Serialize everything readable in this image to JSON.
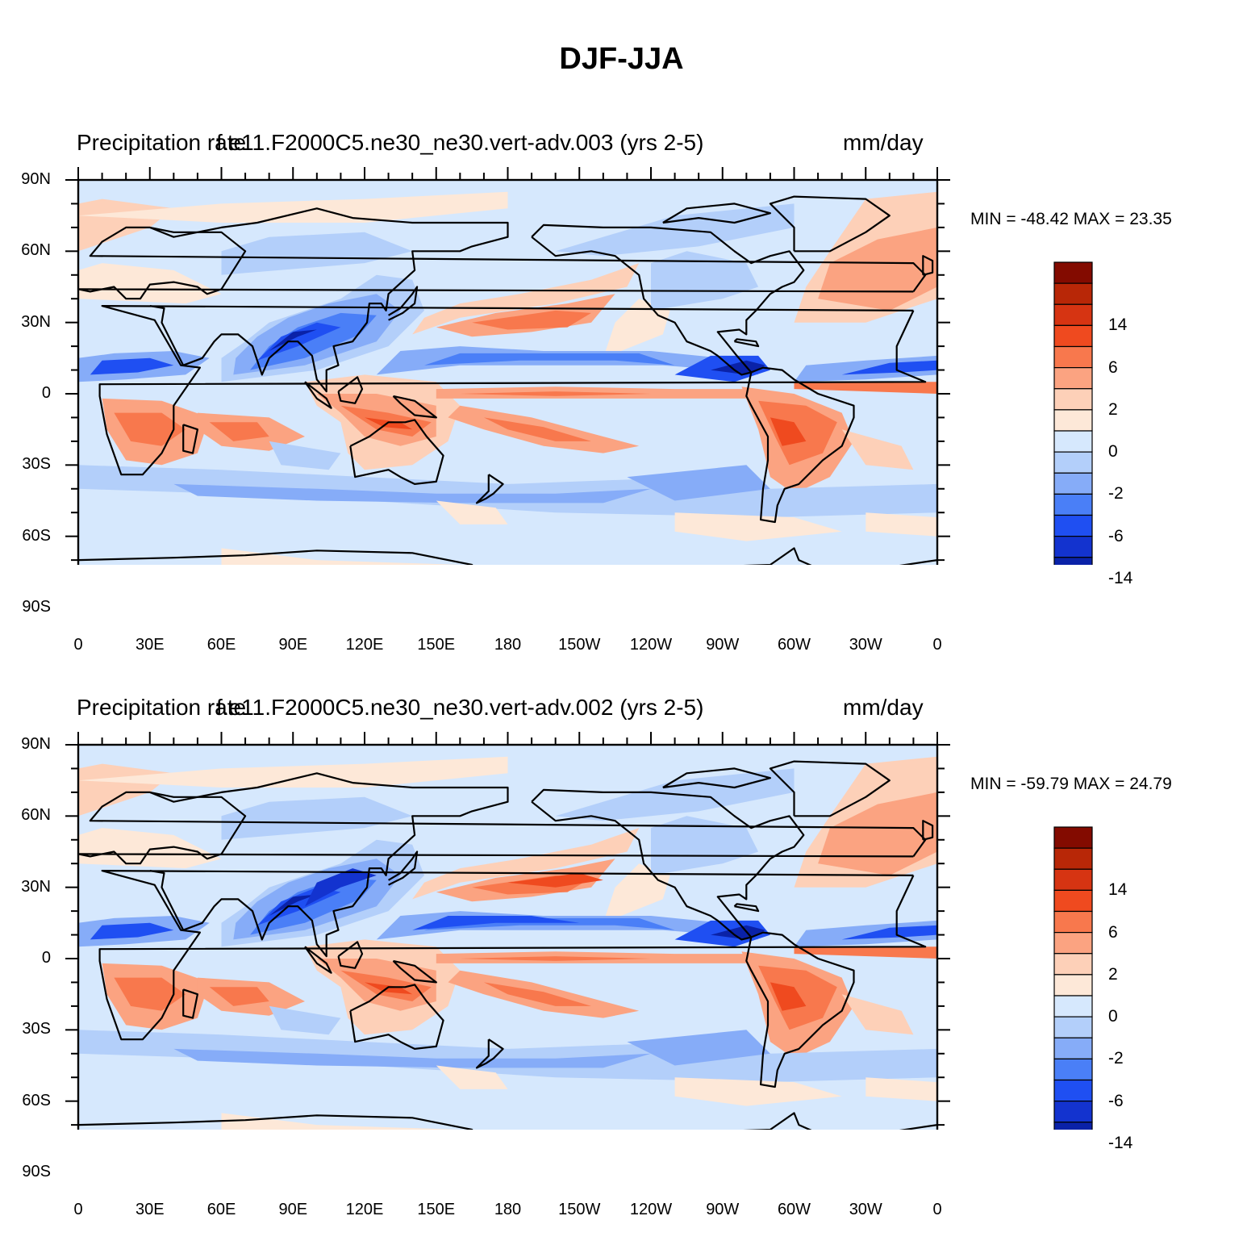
{
  "title": "DJF-JJA",
  "colors": {
    "scale": [
      "#00007a",
      "#0a22a8",
      "#1333cf",
      "#1f4ff2",
      "#4a7ff7",
      "#86acf8",
      "#b3cffa",
      "#d6e8fd",
      "#fde8d8",
      "#fdd0b8",
      "#fba381",
      "#f8784d",
      "#ef4a1f",
      "#d63412",
      "#b82707",
      "#830b00"
    ],
    "coast": "#000000"
  },
  "panels": [
    {
      "left_title": "Precipitation rate",
      "center_title": "f.e11.F2000C5.ne30_ne30.vert-adv.003 (yrs 2-5)",
      "right_title": "mm/day",
      "minmax": "MIN = -48.42 MAX =  23.35"
    },
    {
      "left_title": "Precipitation rate",
      "center_title": "f.e11.F2000C5.ne30_ne30.vert-adv.002 (yrs 2-5)",
      "right_title": "mm/day",
      "minmax": "MIN = -59.79 MAX =  24.79"
    }
  ],
  "colorbar_labels": [
    "14",
    "6",
    "2",
    "0",
    "-2",
    "-6",
    "-14"
  ],
  "lat_labels": [
    "90N",
    "60N",
    "30N",
    "0",
    "30S",
    "60S",
    "90S"
  ],
  "lon_labels": [
    "0",
    "30E",
    "60E",
    "90E",
    "120E",
    "150E",
    "180",
    "150W",
    "120W",
    "90W",
    "60W",
    "30W",
    "0"
  ],
  "chart_data": [
    {
      "type": "heatmap",
      "title": "DJF-JJA",
      "subtitle": "f.e11.F2000C5.ne30_ne30.vert-adv.003 (yrs 2-5)",
      "variable": "Precipitation rate",
      "units": "mm/day",
      "min": -48.42,
      "max": 23.35,
      "x_range": [
        0,
        360
      ],
      "y_range": [
        -90,
        90
      ],
      "color_levels": [
        "<-14",
        "-14",
        "-10",
        "-6",
        "-4",
        "-2",
        "-1",
        "0",
        "1",
        "2",
        "4",
        "6",
        "10",
        "14",
        "18",
        ">18"
      ]
    },
    {
      "type": "heatmap",
      "title": "DJF-JJA",
      "subtitle": "f.e11.F2000C5.ne30_ne30.vert-adv.002 (yrs 2-5)",
      "variable": "Precipitation rate",
      "units": "mm/day",
      "min": -59.79,
      "max": 24.79,
      "x_range": [
        0,
        360
      ],
      "y_range": [
        -90,
        90
      ],
      "color_levels": [
        "<-14",
        "-14",
        "-10",
        "-6",
        "-4",
        "-2",
        "-1",
        "0",
        "1",
        "2",
        "4",
        "6",
        "10",
        "14",
        "18",
        ">18"
      ]
    }
  ]
}
